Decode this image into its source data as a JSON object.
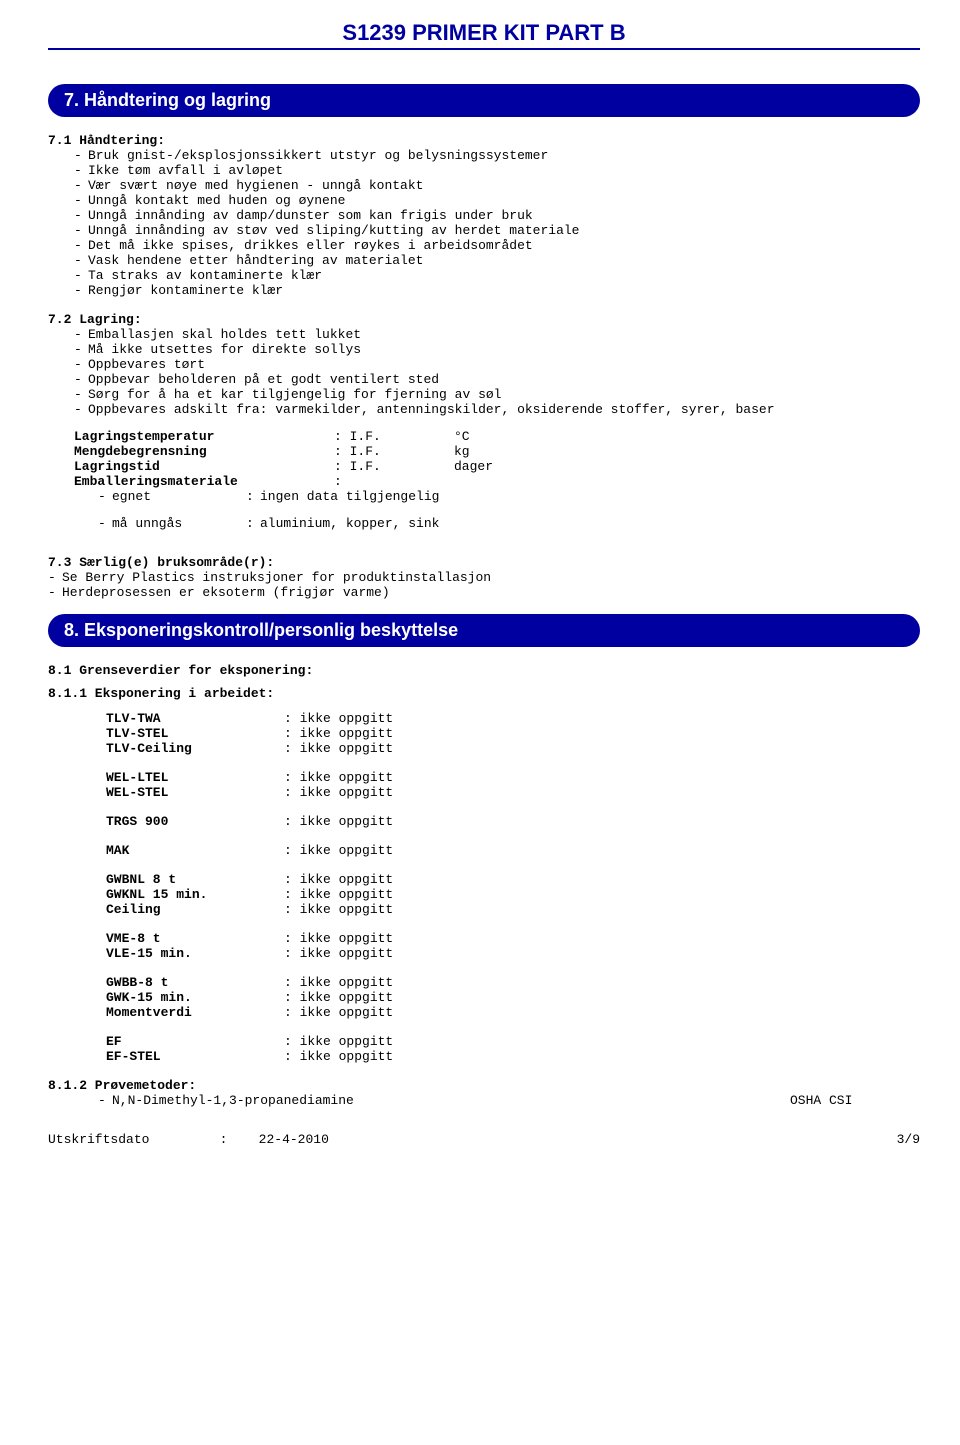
{
  "doc": {
    "title": "S1239 PRIMER KIT PART B"
  },
  "section7": {
    "bar": "7.   Håndtering og lagring",
    "h71": "7.1 Håndtering:",
    "b71": [
      "Bruk gnist-/eksplosjonssikkert utstyr og belysningssystemer",
      "Ikke tøm avfall i avløpet",
      "Vær svært nøye med hygienen - unngå kontakt",
      "Unngå kontakt med huden og øynene",
      "Unngå innånding av damp/dunster som kan frigis under bruk",
      "Unngå innånding av støv ved sliping/kutting av herdet materiale",
      "Det må ikke spises, drikkes eller røykes i arbeidsområdet",
      "Vask hendene etter håndtering av materialet",
      "Ta straks av kontaminerte klær",
      "Rengjør kontaminerte klær"
    ],
    "h72": "7.2 Lagring:",
    "b72": [
      "Emballasjen skal holdes tett lukket",
      "Må ikke utsettes for direkte sollys",
      "Oppbevares tørt",
      "Oppbevar beholderen på et godt ventilert sted",
      "Sørg for å ha et kar tilgjengelig for fjerning av søl",
      "Oppbevares adskilt fra: varmekilder, antenningskilder, oksiderende stoffer, syrer, baser"
    ],
    "params": [
      {
        "k": "Lagringstemperatur",
        "v": ": I.F.",
        "u": "°C"
      },
      {
        "k": "Mengdebegrensning",
        "v": ": I.F.",
        "u": "kg"
      },
      {
        "k": "Lagringstid",
        "v": ": I.F.",
        "u": "dager"
      },
      {
        "k": "Emballeringsmateriale",
        "v": ":",
        "u": ""
      }
    ],
    "emb": [
      {
        "k": "egnet",
        "v": "ingen data tilgjengelig"
      },
      {
        "k": "må unngås",
        "v": "aluminium, kopper, sink"
      }
    ],
    "h73": "7.3 Særlig(e) bruksområde(r):",
    "b73": [
      "Se Berry Plastics instruksjoner for produktinstallasjon",
      "Herdeprosessen er eksoterm (frigjør varme)"
    ]
  },
  "section8": {
    "bar": "8.   Eksponeringskontroll/personlig beskyttelse",
    "h81": "8.1 Grenseverdier for eksponering:",
    "h811": "8.1.1  Eksponering i arbeidet:",
    "groups": [
      [
        {
          "k": "TLV-TWA",
          "v": ": ikke oppgitt"
        },
        {
          "k": "TLV-STEL",
          "v": ": ikke oppgitt"
        },
        {
          "k": "TLV-Ceiling",
          "v": ": ikke oppgitt"
        }
      ],
      [
        {
          "k": "WEL-LTEL",
          "v": ": ikke oppgitt"
        },
        {
          "k": "WEL-STEL",
          "v": ": ikke oppgitt"
        }
      ],
      [
        {
          "k": "TRGS 900",
          "v": ": ikke oppgitt"
        }
      ],
      [
        {
          "k": "MAK",
          "v": ": ikke oppgitt"
        }
      ],
      [
        {
          "k": "GWBNL 8 t",
          "v": ": ikke oppgitt"
        },
        {
          "k": "GWKNL 15 min.",
          "v": ": ikke oppgitt"
        },
        {
          "k": "Ceiling",
          "v": ": ikke oppgitt"
        }
      ],
      [
        {
          "k": "VME-8 t",
          "v": ": ikke oppgitt"
        },
        {
          "k": "VLE-15 min.",
          "v": ": ikke oppgitt"
        }
      ],
      [
        {
          "k": "GWBB-8 t",
          "v": ": ikke oppgitt"
        },
        {
          "k": "GWK-15 min.",
          "v": ": ikke oppgitt"
        },
        {
          "k": "Momentverdi",
          "v": ": ikke oppgitt"
        }
      ],
      [
        {
          "k": "EF",
          "v": ": ikke oppgitt"
        },
        {
          "k": "EF-STEL",
          "v": ": ikke oppgitt"
        }
      ]
    ],
    "h812": "8.1.2  Prøvemetoder:",
    "methods": [
      {
        "n": "N,N-Dimethyl-1,3-propanediamine",
        "src": "OSHA  CSI"
      }
    ]
  },
  "footer": {
    "left_label": "Utskriftsdato",
    "left_sep": ":",
    "date": "22-4-2010",
    "right": "3/9"
  }
}
